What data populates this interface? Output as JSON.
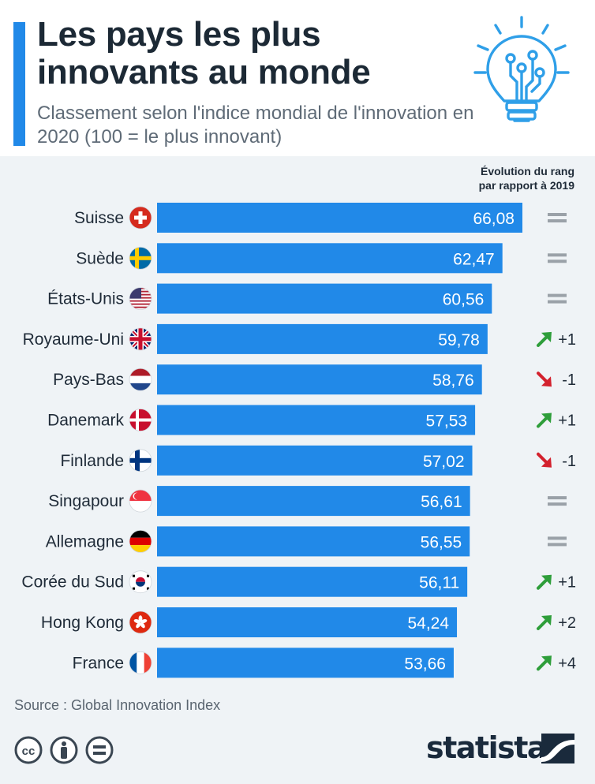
{
  "title": "Les pays les plus innovants au monde",
  "subtitle": "Classement selon l'indice mondial de l'innovation en 2020 (100 = le plus innovant)",
  "rank_header": {
    "line1": "Évolution du rang",
    "line2": "par rapport à 2019"
  },
  "source": "Source : Global Innovation Index",
  "brand": "statista",
  "colors": {
    "bar": "#2189e8",
    "up": "#2e9e3a",
    "down": "#d3212d",
    "same": "#9aa1a8",
    "background": "#eff3f6"
  },
  "chart_data": {
    "type": "bar",
    "orientation": "horizontal",
    "categories": [
      "Suisse",
      "Suède",
      "États-Unis",
      "Royaume-Uni",
      "Pays-Bas",
      "Danemark",
      "Finlande",
      "Singapour",
      "Allemagne",
      "Corée du Sud",
      "Hong Kong",
      "France"
    ],
    "values": [
      66.08,
      62.47,
      60.56,
      59.78,
      58.76,
      57.53,
      57.02,
      56.61,
      56.55,
      56.11,
      54.24,
      53.66
    ],
    "value_labels": [
      "66,08",
      "62,47",
      "60,56",
      "59,78",
      "58,76",
      "57,53",
      "57,02",
      "56,61",
      "56,55",
      "56,11",
      "54,24",
      "53,66"
    ],
    "rank_change": [
      0,
      0,
      0,
      1,
      -1,
      1,
      -1,
      0,
      0,
      1,
      2,
      4
    ],
    "rank_change_labels": [
      "",
      "",
      "",
      "+1",
      "-1",
      "+1",
      "-1",
      "",
      "",
      "+1",
      "+2",
      "+4"
    ],
    "flags": [
      "ch",
      "se",
      "us",
      "gb",
      "nl",
      "dk",
      "fi",
      "sg",
      "de",
      "kr",
      "hk",
      "fr"
    ],
    "xlim": [
      0,
      66.08
    ],
    "grid": false,
    "legend": "none"
  }
}
